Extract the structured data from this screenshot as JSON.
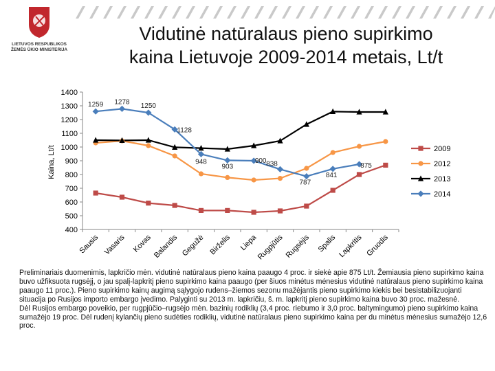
{
  "slide": {
    "title_line1": "Vidutinė natūralaus pieno supirkimo",
    "title_line2": "kaina Lietuvoje 2009-2014 metais,  Lt/t",
    "logo_text": [
      "LIETUVOS RESPUBLIKOS",
      "ŽEMĖS ŪKIO MINISTERIJA"
    ],
    "paragraph1": "Preliminariais duomenimis, lapkričio mėn. vidutinė natūralaus pieno kaina paaugo 4 proc. ir siekė apie 875 Lt/t. Žemiausia pieno supirkimo kaina buvo užfiksuota rugsėjį, o jau spalį-lapkritį pieno supirkimo kaina paaugo (per šiuos minėtus mėnesius vidutinė natūralaus pieno supirkimo kaina paaugo 11 proc.). Pieno supirkimo kainų augimą sąlygojo rudens–žiemos sezonu mažėjantis pieno supirkimo kiekis bei besistabilizuojanti situacija po Rusijos importo embargo įvedimo. Palyginti su 2013 m. lapkričiu, š. m. lapkritį pieno supirkimo kaina buvo 30 proc. mažesnė.",
    "paragraph2": "Dėl Rusijos embargo poveikio, per rugpjūčio–rugsėjo mėn. bazinių rodiklių (3,4 proc. riebumo ir 3,0 proc. baltymingumo) pieno supirkimo kaina sumažėjo 19 proc. Dėl rudenį kylančių pieno sudėties rodiklių, vidutinė natūralaus pieno supirkimo kaina per du minėtus mėnesius sumažėjo 12,6 proc."
  },
  "chart_data": {
    "type": "line",
    "title": "Vidutinė natūralaus pieno supirkimo kaina Lietuvoje 2009-2014 metais, Lt/t",
    "xlabel": "",
    "ylabel": "Kaina, Lt/t",
    "ylim": [
      400,
      1400
    ],
    "yticks": [
      400,
      500,
      600,
      700,
      800,
      900,
      1000,
      1100,
      1200,
      1300,
      1400
    ],
    "grid": false,
    "legend_position": "right",
    "categories": [
      "Sausis",
      "Vasaris",
      "Kovas",
      "Balandis",
      "Gegužė",
      "Birželis",
      "Liepa",
      "Rugpjūtis",
      "Rugsėjis",
      "Spalis",
      "Lapkritis",
      "Gruodis"
    ],
    "series": [
      {
        "name": "2009",
        "color": "#be4b48",
        "marker": "square",
        "values": [
          665,
          635,
          592,
          575,
          538,
          538,
          525,
          535,
          570,
          685,
          800,
          868
        ]
      },
      {
        "name": "2012",
        "color": "#f79646",
        "marker": "circle",
        "values": [
          1030,
          1045,
          1010,
          935,
          805,
          778,
          760,
          772,
          845,
          960,
          1005,
          1040
        ]
      },
      {
        "name": "2013",
        "color": "#000000",
        "marker": "triangle",
        "values": [
          1050,
          1048,
          1050,
          998,
          992,
          985,
          1010,
          1045,
          1165,
          1258,
          1255,
          1255
        ]
      },
      {
        "name": "2014",
        "color": "#4a7ebb",
        "marker": "diamond",
        "values": [
          1259,
          1278,
          1250,
          1128,
          948,
          903,
          900,
          838,
          787,
          841,
          875,
          null
        ]
      }
    ],
    "annotations": [
      {
        "series": "2014",
        "index": 0,
        "text": "1259"
      },
      {
        "series": "2014",
        "index": 1,
        "text": "1278"
      },
      {
        "series": "2014",
        "index": 2,
        "text": "1250"
      },
      {
        "series": "2014",
        "index": 3,
        "text": "1128"
      },
      {
        "series": "2014",
        "index": 4,
        "text": "948"
      },
      {
        "series": "2014",
        "index": 5,
        "text": "903"
      },
      {
        "series": "2014",
        "index": 6,
        "text": "900"
      },
      {
        "series": "2014",
        "index": 7,
        "text": "838"
      },
      {
        "series": "2014",
        "index": 8,
        "text": "787"
      },
      {
        "series": "2014",
        "index": 9,
        "text": "841"
      },
      {
        "series": "2014",
        "index": 10,
        "text": "875"
      }
    ]
  }
}
